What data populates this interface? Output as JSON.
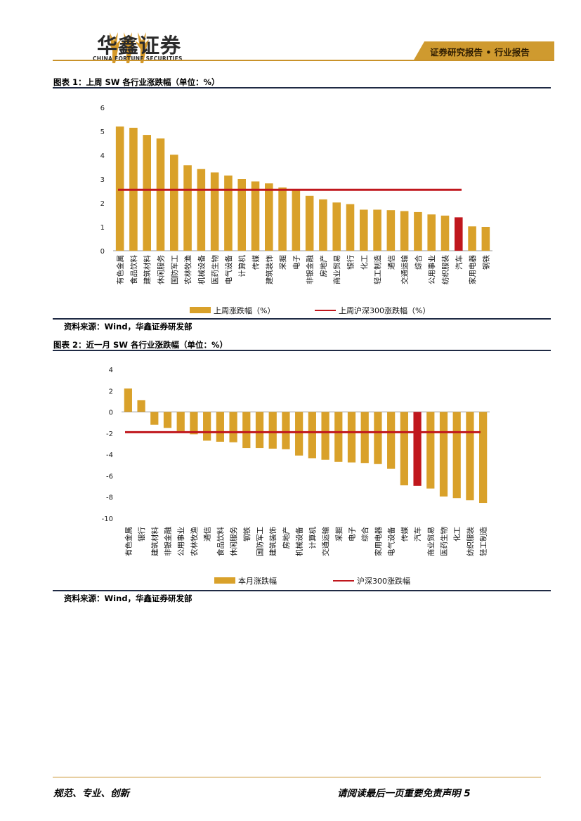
{
  "header": {
    "logo_cn": "华鑫证券",
    "logo_en": "CHINA FORTUNE SECURITIES",
    "tag": "证券研究报告 • 行业报告"
  },
  "figure1": {
    "title": "图表 1：上周 SW 各行业涨跌幅（单位：%）",
    "source": "资料来源：Wind，华鑫证券研发部"
  },
  "figure2": {
    "title": "图表 2：近一月 SW 各行业涨跌幅（单位：%）",
    "source": "资料来源：Wind，华鑫证券研发部"
  },
  "footer": {
    "left": "规范、专业、创新",
    "right": "请阅读最后一页重要免责声明 5"
  },
  "colors": {
    "bar": "#d9a12a",
    "highlight": "#c0171d",
    "line": "#c0171d",
    "brand": "#c9922a"
  },
  "chart_data": [
    {
      "type": "bar",
      "categories": [
        "有色金属",
        "食品饮料",
        "建筑材料",
        "休闲服务",
        "国防军工",
        "农林牧渔",
        "机械设备",
        "医药生物",
        "电气设备",
        "计算机",
        "传媒",
        "建筑装饰",
        "采掘",
        "电子",
        "非银金融",
        "房地产",
        "商业贸易",
        "银行",
        "化工",
        "轻工制造",
        "通信",
        "交通运输",
        "综合",
        "公用事业",
        "纺织服装",
        "汽车",
        "家用电器",
        "钢铁"
      ],
      "series": [
        {
          "name": "上周涨跌幅（%）",
          "values": [
            5.2,
            5.15,
            4.85,
            4.7,
            4.02,
            3.58,
            3.42,
            3.28,
            3.15,
            3.0,
            2.9,
            2.82,
            2.65,
            2.55,
            2.3,
            2.15,
            2.02,
            1.95,
            1.72,
            1.72,
            1.7,
            1.66,
            1.62,
            1.52,
            1.47,
            1.4,
            1.02,
            1.0
          ]
        },
        {
          "name": "上周沪深300涨跌幅（%）",
          "value": 2.55
        }
      ],
      "highlight_category": "汽车",
      "ylim": [
        0,
        6
      ],
      "yticks": [
        0,
        1,
        2,
        3,
        4,
        5,
        6
      ],
      "legend": "bottom"
    },
    {
      "type": "bar",
      "categories": [
        "有色金属",
        "银行",
        "建筑材料",
        "非银金融",
        "公用事业",
        "农林牧渔",
        "通信",
        "食品饮料",
        "休闲服务",
        "钢铁",
        "国防军工",
        "建筑装饰",
        "房地产",
        "机械设备",
        "计算机",
        "交通运输",
        "采掘",
        "电子",
        "综合",
        "家用电器",
        "电气设备",
        "传媒",
        "汽车",
        "商业贸易",
        "医药生物",
        "化工",
        "纺织服装",
        "轻工制造"
      ],
      "series": [
        {
          "name": "本月涨跌幅",
          "values": [
            2.2,
            1.1,
            -1.2,
            -1.5,
            -1.8,
            -2.1,
            -2.7,
            -2.8,
            -2.85,
            -3.4,
            -3.4,
            -3.45,
            -3.5,
            -4.1,
            -4.35,
            -4.5,
            -4.7,
            -4.75,
            -4.8,
            -4.9,
            -5.35,
            -6.9,
            -6.95,
            -7.2,
            -7.95,
            -8.1,
            -8.3,
            -8.55
          ]
        },
        {
          "name": "沪深300涨跌幅",
          "value": -1.9
        }
      ],
      "highlight_category": "汽车",
      "ylim": [
        -10,
        4
      ],
      "yticks": [
        -10,
        -8,
        -6,
        -4,
        -2,
        0,
        2,
        4
      ],
      "legend": "bottom"
    }
  ]
}
